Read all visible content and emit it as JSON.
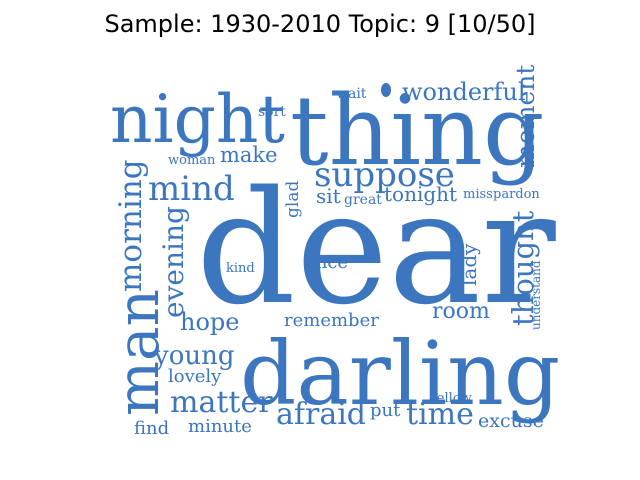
{
  "title": "Sample: 1930-2010 Topic: 9 [10/50]",
  "color": "#3b76bf",
  "words": {
    "dear": "dear",
    "thing": "thing",
    "night": "night",
    "darling": "darling",
    "man": "man",
    "suppose": "suppose",
    "morning": "morning",
    "mind": "mind",
    "wonderful": "wonderful",
    "moment": "moment",
    "thought": "thought",
    "make": "make",
    "evening": "evening",
    "hope": "hope",
    "young": "young",
    "matter": "matter",
    "afraid": "afraid",
    "time": "time",
    "tonight": "tonight",
    "room": "room",
    "sit": "sit",
    "great": "great",
    "glad": "glad",
    "miss": "miss",
    "pardon": "pardon",
    "lady": "lady",
    "nice": "nice",
    "kind": "kind",
    "remember": "remember",
    "lovely": "lovely",
    "put": "put",
    "fellow": "fellow",
    "excuse": "excuse",
    "find": "find",
    "minute": "minute",
    "understand": "understand",
    "wait": "wait",
    "sort": "sort",
    "woman": "woman"
  }
}
